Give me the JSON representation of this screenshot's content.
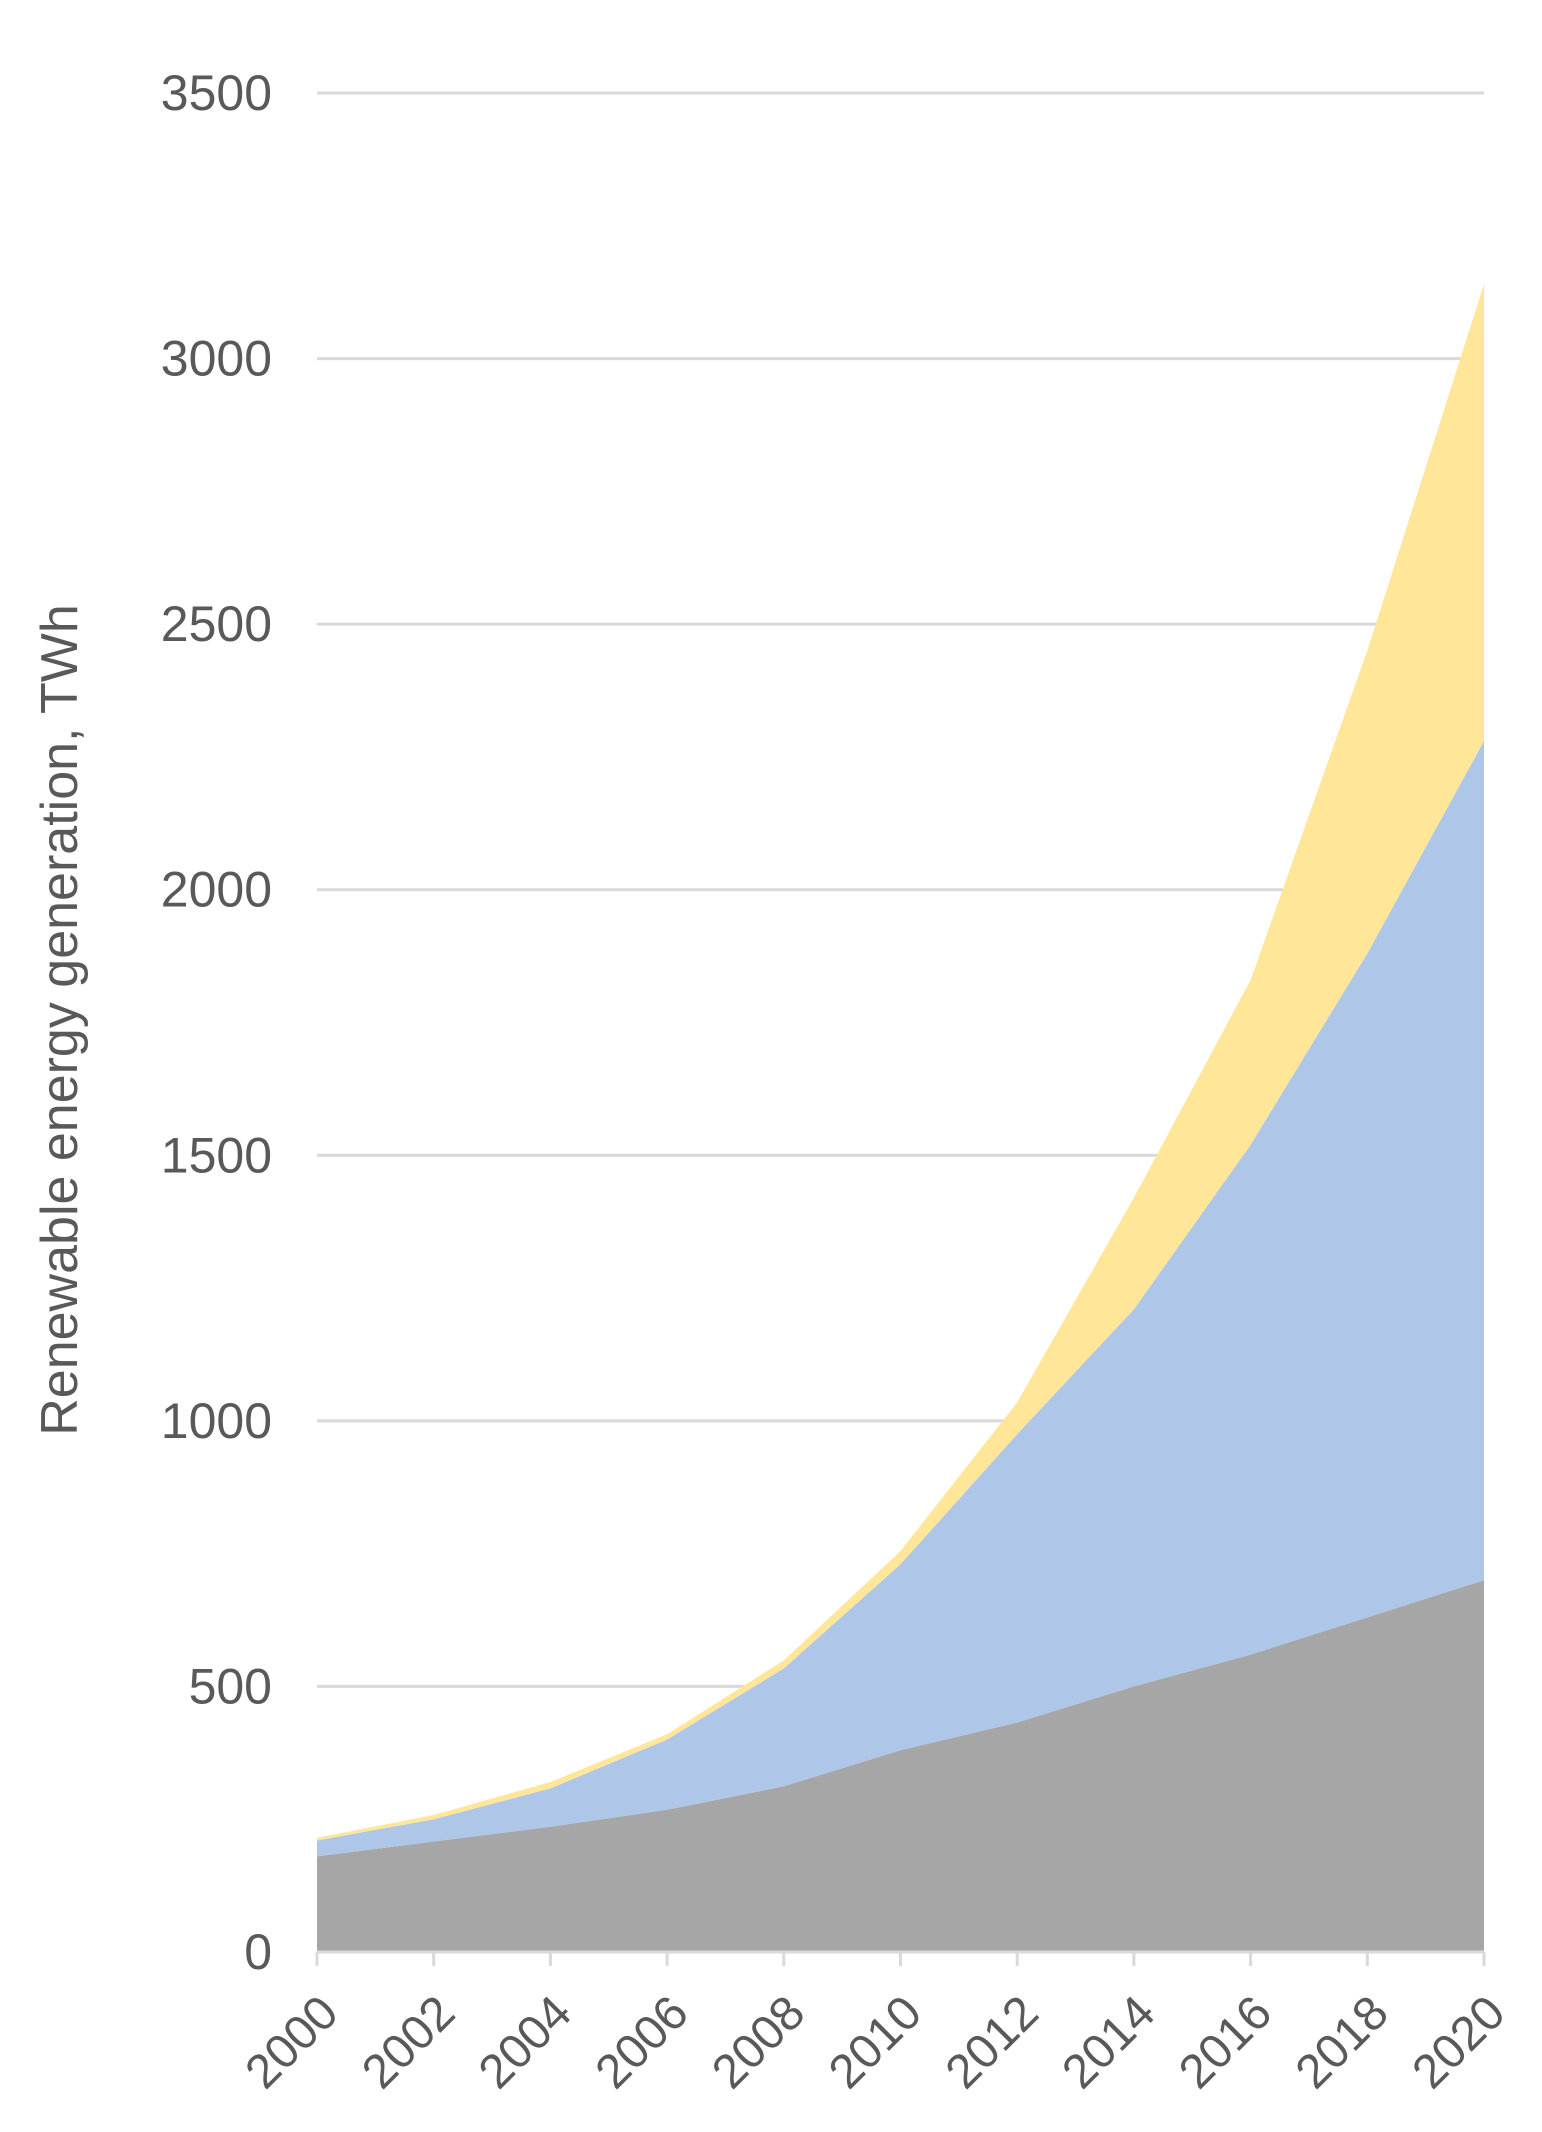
{
  "chart_data": {
    "type": "area",
    "stacked": true,
    "title": "",
    "xlabel": "",
    "ylabel": "Renewable energy generation, TWh",
    "x": [
      "2000",
      "2002",
      "2004",
      "2006",
      "2008",
      "2010",
      "2012",
      "2014",
      "2016",
      "2018",
      "2020"
    ],
    "y_ticks": [
      "0",
      "500",
      "1000",
      "1500",
      "2000",
      "2500",
      "3000",
      "3500"
    ],
    "ylim": [
      0,
      3500
    ],
    "grid": true,
    "legend": "none",
    "series": [
      {
        "color": "#a6a6a6",
        "values": [
          180,
          208,
          236,
          268,
          312,
          380,
          432,
          500,
          560,
          630,
          700
        ]
      },
      {
        "color": "#aec7e8",
        "values": [
          30,
          42,
          72,
          132,
          222,
          350,
          543,
          710,
          960,
          1250,
          1580
        ]
      },
      {
        "color": "#ffe699",
        "values": [
          5,
          8,
          12,
          10,
          15,
          25,
          60,
          210,
          310,
          570,
          860
        ]
      }
    ]
  }
}
